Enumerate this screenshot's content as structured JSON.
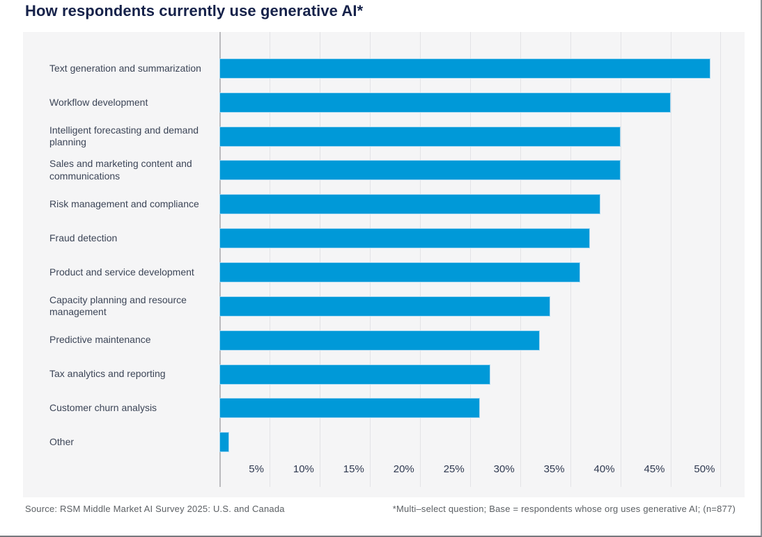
{
  "title": "How respondents currently use generative AI*",
  "footer": {
    "source": "Source: RSM Middle Market AI Survey 2025: U.S. and Canada",
    "footnote": "*Multi–select question; Base = respondents whose org uses generative AI; (n=877)"
  },
  "chart_data": {
    "type": "bar",
    "orientation": "horizontal",
    "title": "How respondents currently use generative AI*",
    "categories": [
      "Text generation and summarization",
      "Workflow development",
      "Intelligent forecasting and demand planning",
      "Sales and marketing content and communications",
      "Risk management and compliance",
      "Fraud detection",
      "Product and service development",
      "Capacity planning and resource management",
      "Predictive maintenance",
      "Tax analytics and reporting",
      "Customer churn analysis",
      "Other"
    ],
    "values": [
      49,
      45,
      40,
      40,
      38,
      37,
      36,
      33,
      32,
      27,
      26,
      1
    ],
    "unit": "%",
    "x_ticks": [
      "5%",
      "10%",
      "15%",
      "20%",
      "25%",
      "30%",
      "35%",
      "40%",
      "45%",
      "50%"
    ],
    "x_tick_values": [
      5,
      10,
      15,
      20,
      25,
      30,
      35,
      40,
      45,
      50
    ],
    "xlim": [
      0,
      52.4
    ],
    "grid": true,
    "legend": false,
    "bar_color": "#0099d8",
    "plot_bg": "#f5f5f6",
    "gridline_color": "#e3e3e6",
    "title_color": "#16224a",
    "label_color": "#3c4557"
  }
}
